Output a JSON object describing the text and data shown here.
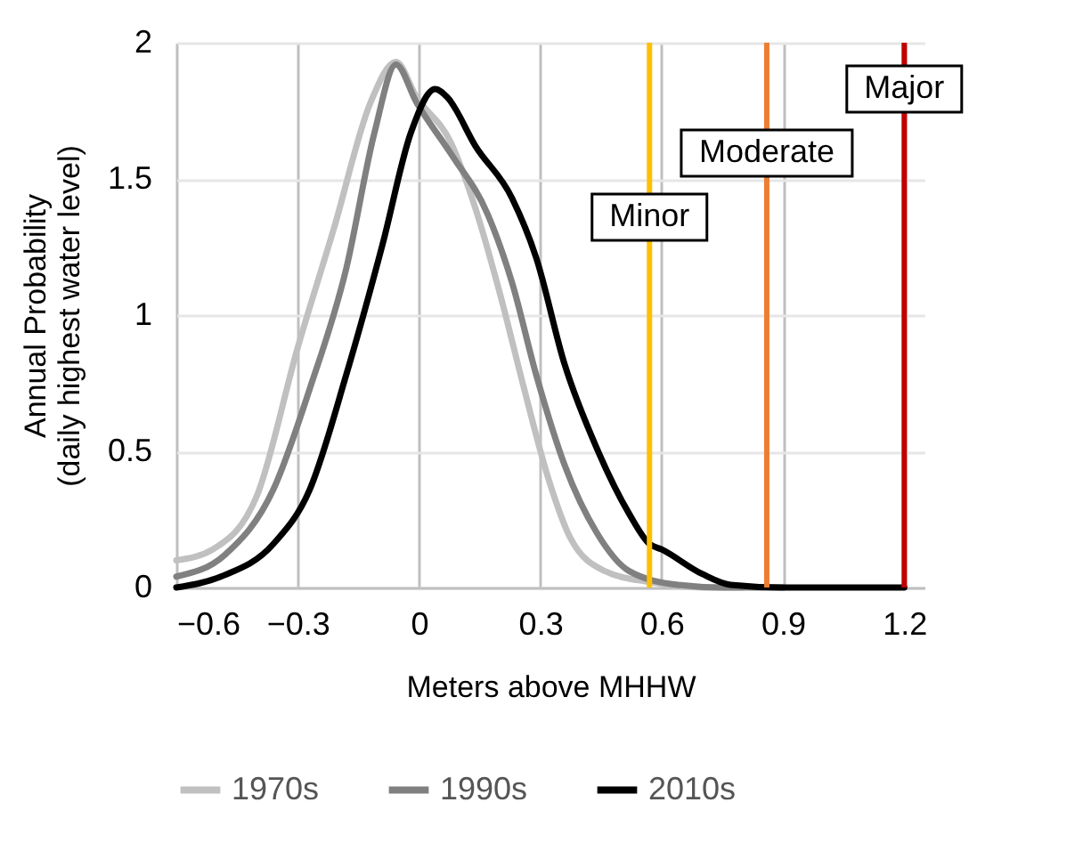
{
  "chart_data": {
    "type": "line",
    "xlabel": "Meters above MHHW",
    "ylabel": "Annual Probability\n(daily highest water level)",
    "xlim": [
      -0.6,
      1.25
    ],
    "xticks": [
      -0.6,
      -0.3,
      0,
      0.3,
      0.6,
      0.9,
      1.2
    ],
    "ylim": [
      0,
      2
    ],
    "yticks": [
      0,
      0.5,
      1,
      1.5,
      2
    ],
    "grid": true,
    "legend": "bottom",
    "marker": "none",
    "line_style": "solid",
    "series": [
      {
        "name": "1970s",
        "color": "#c0c0c0",
        "x": [
          -0.6,
          -0.51,
          -0.4,
          -0.3,
          -0.21,
          -0.12,
          -0.057,
          -0.006,
          0.08,
          0.14,
          0.2,
          0.26,
          0.32,
          0.375,
          0.46,
          0.57,
          0.7,
          0.8
        ],
        "values": [
          0.1,
          0.14,
          0.34,
          0.88,
          1.32,
          1.78,
          1.93,
          1.8,
          1.63,
          1.39,
          1.08,
          0.73,
          0.4,
          0.18,
          0.06,
          0.02,
          0,
          0
        ]
      },
      {
        "name": "1990s",
        "color": "#808080",
        "x": [
          -0.6,
          -0.48,
          -0.36,
          -0.27,
          -0.18,
          -0.11,
          -0.057,
          -0.006,
          0.08,
          0.17,
          0.23,
          0.29,
          0.36,
          0.44,
          0.52,
          0.64,
          0.75,
          0.9
        ],
        "values": [
          0.04,
          0.12,
          0.36,
          0.73,
          1.17,
          1.67,
          1.92,
          1.78,
          1.59,
          1.37,
          1.12,
          0.78,
          0.45,
          0.2,
          0.06,
          0.01,
          0,
          0
        ]
      },
      {
        "name": "2010s",
        "color": "#000000",
        "x": [
          -0.6,
          -0.49,
          -0.36,
          -0.27,
          -0.18,
          -0.09,
          -0.02,
          0.04,
          0.07,
          0.14,
          0.23,
          0.29,
          0.36,
          0.44,
          0.52,
          0.57,
          0.6,
          0.7,
          0.77,
          0.9,
          1.2
        ],
        "values": [
          0,
          0.04,
          0.16,
          0.36,
          0.78,
          1.26,
          1.67,
          1.83,
          1.8,
          1.62,
          1.43,
          1.21,
          0.82,
          0.51,
          0.27,
          0.16,
          0.14,
          0.05,
          0.01,
          0,
          0
        ]
      }
    ],
    "ref_lines": [
      {
        "axis": "x",
        "value": 0.57,
        "label": "Minor",
        "color": "#ffc000"
      },
      {
        "axis": "x",
        "value": 0.86,
        "label": "Moderate",
        "color": "#ed7d31"
      },
      {
        "axis": "x",
        "value": 1.2,
        "label": "Major",
        "color": "#c00000"
      }
    ]
  }
}
